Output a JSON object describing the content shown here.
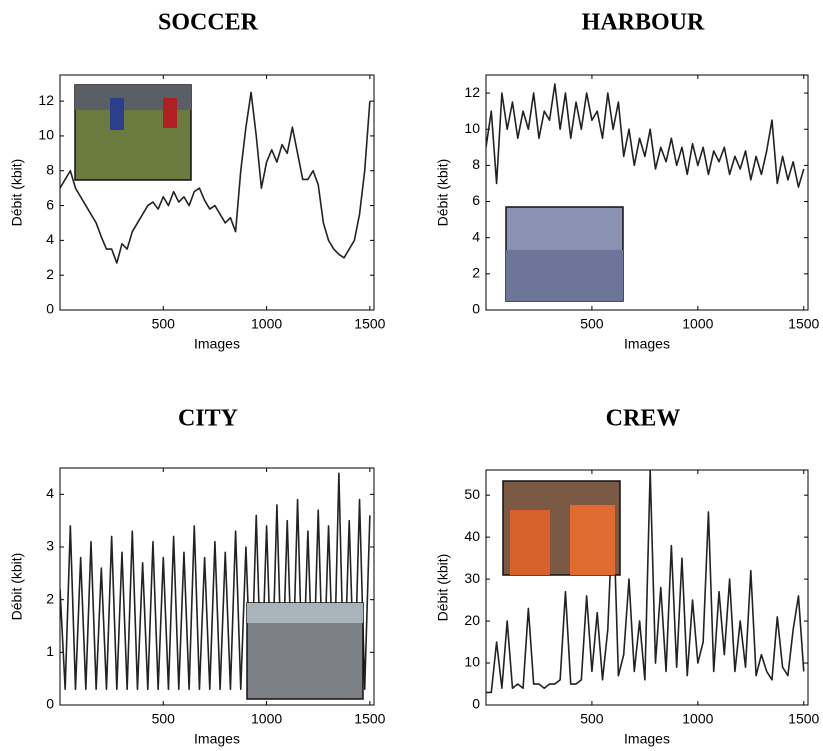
{
  "chart_data": [
    {
      "type": "line",
      "title": "SOCCER",
      "xlabel": "Images",
      "ylabel": "Débit (kbit)",
      "color": "#222222",
      "xlim": [
        0,
        1520
      ],
      "xticks": [
        500,
        1000,
        1500
      ],
      "ylim": [
        0,
        13.5
      ],
      "yticks": [
        0,
        2,
        4,
        6,
        8,
        10,
        12
      ],
      "x": [
        0,
        25,
        50,
        75,
        100,
        125,
        150,
        175,
        200,
        225,
        250,
        275,
        300,
        325,
        350,
        375,
        400,
        425,
        450,
        475,
        500,
        525,
        550,
        575,
        600,
        625,
        650,
        675,
        700,
        725,
        750,
        775,
        800,
        825,
        850,
        875,
        900,
        925,
        950,
        975,
        1000,
        1025,
        1050,
        1075,
        1100,
        1125,
        1150,
        1175,
        1200,
        1225,
        1250,
        1275,
        1300,
        1325,
        1350,
        1375,
        1400,
        1425,
        1450,
        1475,
        1500
      ],
      "values": [
        7,
        7.5,
        8,
        7,
        6.5,
        6,
        5.5,
        5,
        4.2,
        3.5,
        3.5,
        2.7,
        3.8,
        3.5,
        4.5,
        5,
        5.5,
        6,
        6.2,
        5.8,
        6.5,
        6,
        6.8,
        6.2,
        6.5,
        6,
        6.8,
        7,
        6.3,
        5.8,
        6,
        5.5,
        5,
        5.3,
        4.5,
        8,
        10.5,
        12.5,
        10,
        7,
        8.5,
        9.2,
        8.5,
        9.5,
        9,
        10.5,
        9,
        7.5,
        7.5,
        8,
        7.2,
        5,
        4,
        3.5,
        3.2,
        3,
        3.5,
        4,
        5.5,
        8,
        12
      ]
    },
    {
      "type": "line",
      "title": "HARBOUR",
      "xlabel": "Images",
      "ylabel": "Débit (kbit)",
      "color": "#222222",
      "xlim": [
        0,
        1520
      ],
      "xticks": [
        500,
        1000,
        1500
      ],
      "ylim": [
        0,
        13
      ],
      "yticks": [
        0,
        2,
        4,
        6,
        8,
        10,
        12
      ],
      "x": [
        0,
        25,
        50,
        75,
        100,
        125,
        150,
        175,
        200,
        225,
        250,
        275,
        300,
        325,
        350,
        375,
        400,
        425,
        450,
        475,
        500,
        525,
        550,
        575,
        600,
        625,
        650,
        675,
        700,
        725,
        750,
        775,
        800,
        825,
        850,
        875,
        900,
        925,
        950,
        975,
        1000,
        1025,
        1050,
        1075,
        1100,
        1125,
        1150,
        1175,
        1200,
        1225,
        1250,
        1275,
        1300,
        1325,
        1350,
        1375,
        1400,
        1425,
        1450,
        1475,
        1500
      ],
      "values": [
        9,
        11,
        7,
        12,
        10,
        11.5,
        9.5,
        11,
        10,
        12,
        9.5,
        11,
        10.5,
        12.5,
        10,
        12,
        9.5,
        11.5,
        10,
        12,
        10.5,
        11,
        9.5,
        12,
        10,
        11.5,
        8.5,
        10,
        8,
        9.5,
        8.5,
        10,
        7.8,
        9,
        8.2,
        9.5,
        8,
        9,
        7.5,
        9.2,
        8,
        9,
        7.5,
        8.8,
        8.2,
        9,
        7.5,
        8.5,
        7.8,
        8.8,
        7.2,
        8.5,
        7.5,
        8.8,
        10.5,
        7,
        8.5,
        7.2,
        8.2,
        6.8,
        7.8
      ]
    },
    {
      "type": "line",
      "title": "CITY",
      "xlabel": "Images",
      "ylabel": "Débit (kbit)",
      "color": "#222222",
      "xlim": [
        0,
        1520
      ],
      "xticks": [
        500,
        1000,
        1500
      ],
      "ylim": [
        0,
        4.5
      ],
      "yticks": [
        0,
        1,
        2,
        3,
        4
      ],
      "x": [
        0,
        25,
        50,
        75,
        100,
        125,
        150,
        175,
        200,
        225,
        250,
        275,
        300,
        325,
        350,
        375,
        400,
        425,
        450,
        475,
        500,
        525,
        550,
        575,
        600,
        625,
        650,
        675,
        700,
        725,
        750,
        775,
        800,
        825,
        850,
        875,
        900,
        925,
        950,
        975,
        1000,
        1025,
        1050,
        1075,
        1100,
        1125,
        1150,
        1175,
        1200,
        1225,
        1250,
        1275,
        1300,
        1325,
        1350,
        1375,
        1400,
        1425,
        1450,
        1475,
        1500
      ],
      "values": [
        2.2,
        0.3,
        3.4,
        0.3,
        2.8,
        0.3,
        3.1,
        0.3,
        2.6,
        0.3,
        3.2,
        0.3,
        2.9,
        0.3,
        3.3,
        0.3,
        2.7,
        0.3,
        3.1,
        0.3,
        2.8,
        0.3,
        3.2,
        0.3,
        2.9,
        0.3,
        3.4,
        0.3,
        2.8,
        0.3,
        3.1,
        0.3,
        2.9,
        0.3,
        3.3,
        0.3,
        3.0,
        0.3,
        3.6,
        0.3,
        3.4,
        0.3,
        3.8,
        0.3,
        3.5,
        0.3,
        3.9,
        0.3,
        3.3,
        0.3,
        3.7,
        0.3,
        3.4,
        0.3,
        4.4,
        0.3,
        3.5,
        0.3,
        3.9,
        0.3,
        3.6
      ]
    },
    {
      "type": "line",
      "title": "CREW",
      "xlabel": "Images",
      "ylabel": "Débit (kbit)",
      "color": "#222222",
      "xlim": [
        0,
        1520
      ],
      "xticks": [
        500,
        1000,
        1500
      ],
      "ylim": [
        0,
        56
      ],
      "yticks": [
        0,
        10,
        20,
        30,
        40,
        50
      ],
      "x": [
        0,
        25,
        50,
        75,
        100,
        125,
        150,
        175,
        200,
        225,
        250,
        275,
        300,
        325,
        350,
        375,
        400,
        425,
        450,
        475,
        500,
        525,
        550,
        575,
        600,
        625,
        650,
        675,
        700,
        725,
        750,
        775,
        800,
        825,
        850,
        875,
        900,
        925,
        950,
        975,
        1000,
        1025,
        1050,
        1075,
        1100,
        1125,
        1150,
        1175,
        1200,
        1225,
        1250,
        1275,
        1300,
        1325,
        1350,
        1375,
        1400,
        1425,
        1450,
        1475,
        1500
      ],
      "values": [
        3,
        3,
        15,
        4,
        20,
        4,
        5,
        4,
        23,
        5,
        5,
        4,
        5,
        5,
        6,
        27,
        5,
        5,
        6,
        26,
        8,
        22,
        6,
        18,
        48,
        7,
        12,
        30,
        8,
        20,
        6,
        56,
        10,
        28,
        8,
        38,
        9,
        35,
        7,
        25,
        10,
        15,
        46,
        8,
        27,
        12,
        30,
        8,
        20,
        9,
        32,
        7,
        12,
        8,
        6,
        21,
        9,
        7,
        18,
        26,
        8
      ]
    }
  ]
}
